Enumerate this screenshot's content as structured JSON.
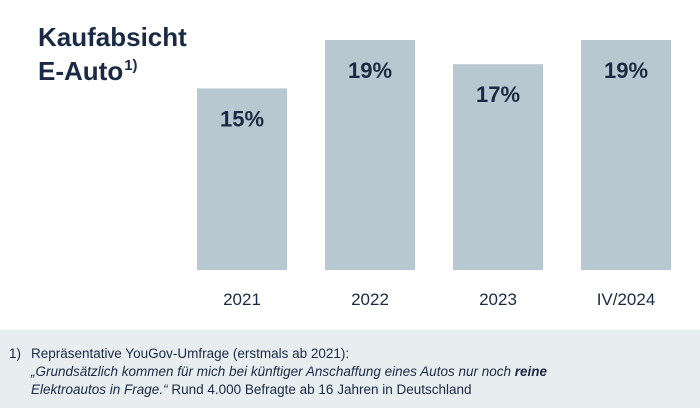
{
  "chart_data": {
    "type": "bar",
    "title": "Kaufabsicht E-Auto",
    "title_line1": "Kaufabsicht",
    "title_line2": "E-Auto",
    "title_footnote_mark": "1)",
    "categories": [
      "2021",
      "2022",
      "2023",
      "IV/2024"
    ],
    "values": [
      15,
      19,
      17,
      19
    ],
    "value_labels": [
      "15%",
      "19%",
      "17%",
      "19%"
    ],
    "unit": "%",
    "ylim": [
      0,
      19
    ],
    "grid": false,
    "legend": "none",
    "bar_color": "#b7c8d0"
  },
  "footnote": {
    "number": "1)",
    "line1": "Repräsentative YouGov-Umfrage (erstmals ab 2021):",
    "quote_part1": "„Grundsätzlich kommen für mich bei künftiger Anschaffung eines Autos nur noch ",
    "quote_bold": "reine",
    "quote_part2": "Elektroautos in Frage.“",
    "suffix": " Rund 4.000 Befragte ab 16 Jahren in Deutschland"
  },
  "colors": {
    "text": "#1b2a44",
    "bar": "#b7c8d0",
    "footnote_bg": "#e8edf0"
  }
}
